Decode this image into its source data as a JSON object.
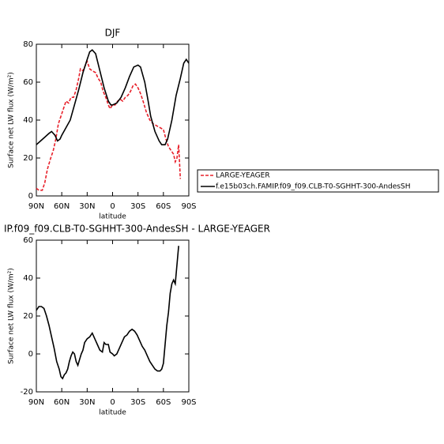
{
  "chart_data": [
    {
      "type": "line",
      "title": "DJF",
      "ylabel": "Surface net LW flux (W/m²)",
      "xlabel": "latitude",
      "xlim": [
        90,
        -90
      ],
      "ylim": [
        0,
        80
      ],
      "xticks": [
        {
          "value": 90,
          "label": "90N"
        },
        {
          "value": 60,
          "label": "60N"
        },
        {
          "value": 30,
          "label": "30N"
        },
        0,
        {
          "value": -30,
          "label": "30S"
        },
        {
          "value": -60,
          "label": "60S"
        },
        {
          "value": -90,
          "label": "90S"
        }
      ],
      "yticks": [
        0,
        20,
        40,
        60,
        80
      ],
      "legend": "right",
      "series": [
        {
          "name": "LARGE-YEAGER",
          "color": "#e8202a",
          "dashed": true,
          "x": [
            90,
            87,
            83,
            80,
            77,
            73,
            70,
            67,
            64,
            61,
            58,
            55,
            52,
            49,
            46,
            43,
            40,
            38,
            35,
            32,
            30,
            27,
            24,
            20,
            17,
            14,
            11,
            8,
            5,
            3,
            0,
            -3,
            -6,
            -9,
            -12,
            -15,
            -18,
            -21,
            -24,
            -27,
            -30,
            -33,
            -36,
            -40,
            -44,
            -48,
            -52,
            -56,
            -60,
            -63,
            -66,
            -69,
            -72,
            -74,
            -76,
            -78,
            -79,
            -80
          ],
          "values": [
            4,
            3,
            3,
            7,
            14,
            20,
            24,
            30,
            38,
            42,
            46,
            50,
            49,
            52,
            52,
            56,
            62,
            67,
            66,
            69,
            71,
            67,
            66,
            65,
            62,
            60,
            55,
            52,
            48,
            46,
            48,
            48,
            50,
            51,
            50,
            52,
            53,
            55,
            58,
            59,
            57,
            54,
            50,
            44,
            40,
            38,
            37,
            36,
            35,
            30,
            26,
            24,
            22,
            18,
            20,
            27,
            18,
            9
          ]
        },
        {
          "name": "f.e15b03ch.FAMIP.f09_f09.CLB-T0-SGHHT-300-AndesSH",
          "color": "#000000",
          "dashed": false,
          "x": [
            90,
            85,
            80,
            75,
            72,
            68,
            65,
            62,
            60,
            55,
            50,
            45,
            40,
            35,
            30,
            27,
            24,
            20,
            15,
            10,
            5,
            2,
            0,
            -5,
            -10,
            -15,
            -20,
            -25,
            -30,
            -33,
            -38,
            -42,
            -45,
            -50,
            -55,
            -58,
            -62,
            -65,
            -70,
            -75,
            -80,
            -84,
            -87,
            -90
          ],
          "values": [
            27,
            29,
            31,
            33,
            34,
            32,
            29,
            30,
            32,
            36,
            40,
            48,
            56,
            65,
            72,
            76,
            77,
            75,
            66,
            57,
            50,
            48,
            48,
            49,
            52,
            57,
            63,
            68,
            69,
            68,
            60,
            50,
            42,
            34,
            29,
            27,
            27,
            30,
            40,
            53,
            62,
            70,
            72,
            70
          ]
        }
      ]
    },
    {
      "type": "line",
      "title": "IP.f09_f09.CLB-T0-SGHHT-300-AndesSH - LARGE-YEAGER",
      "ylabel": "Surface net LW flux (W/m²)",
      "xlabel": "latitude",
      "xlim": [
        90,
        -90
      ],
      "ylim": [
        -20,
        60
      ],
      "xticks": [
        {
          "value": 90,
          "label": "90N"
        },
        {
          "value": 60,
          "label": "60N"
        },
        {
          "value": 30,
          "label": "30N"
        },
        0,
        {
          "value": -30,
          "label": "30S"
        },
        {
          "value": -60,
          "label": "60S"
        },
        {
          "value": -90,
          "label": "90S"
        }
      ],
      "yticks": [
        -20,
        0,
        20,
        40,
        60
      ],
      "series": [
        {
          "color": "#000000",
          "dashed": false,
          "x": [
            90,
            87,
            84,
            81,
            78,
            75,
            72,
            69,
            66,
            63,
            61,
            59,
            57,
            55,
            53,
            51,
            49,
            47,
            45,
            43,
            41,
            39,
            37,
            35,
            33,
            30,
            27,
            24,
            21,
            18,
            15,
            12,
            10,
            8,
            5,
            3,
            0,
            -2,
            -5,
            -8,
            -11,
            -14,
            -17,
            -20,
            -23,
            -26,
            -29,
            -32,
            -35,
            -38,
            -41,
            -44,
            -47,
            -50,
            -53,
            -56,
            -58,
            -60,
            -62,
            -64,
            -66,
            -68,
            -70,
            -72,
            -74,
            -76,
            -78
          ],
          "values": [
            23,
            25,
            25,
            24,
            20,
            15,
            9,
            3,
            -4,
            -8,
            -12,
            -13,
            -11,
            -10,
            -8,
            -4,
            -1,
            1,
            0,
            -4,
            -6,
            -3,
            0,
            2,
            6,
            8,
            9,
            11,
            8,
            5,
            2,
            1,
            6,
            5,
            5,
            1,
            0,
            -1,
            0,
            3,
            6,
            9,
            10,
            12,
            13,
            12,
            10,
            7,
            4,
            2,
            -1,
            -4,
            -6,
            -8,
            -9,
            -9,
            -8,
            -5,
            5,
            15,
            22,
            32,
            37,
            39,
            37,
            47,
            57
          ]
        }
      ]
    }
  ]
}
